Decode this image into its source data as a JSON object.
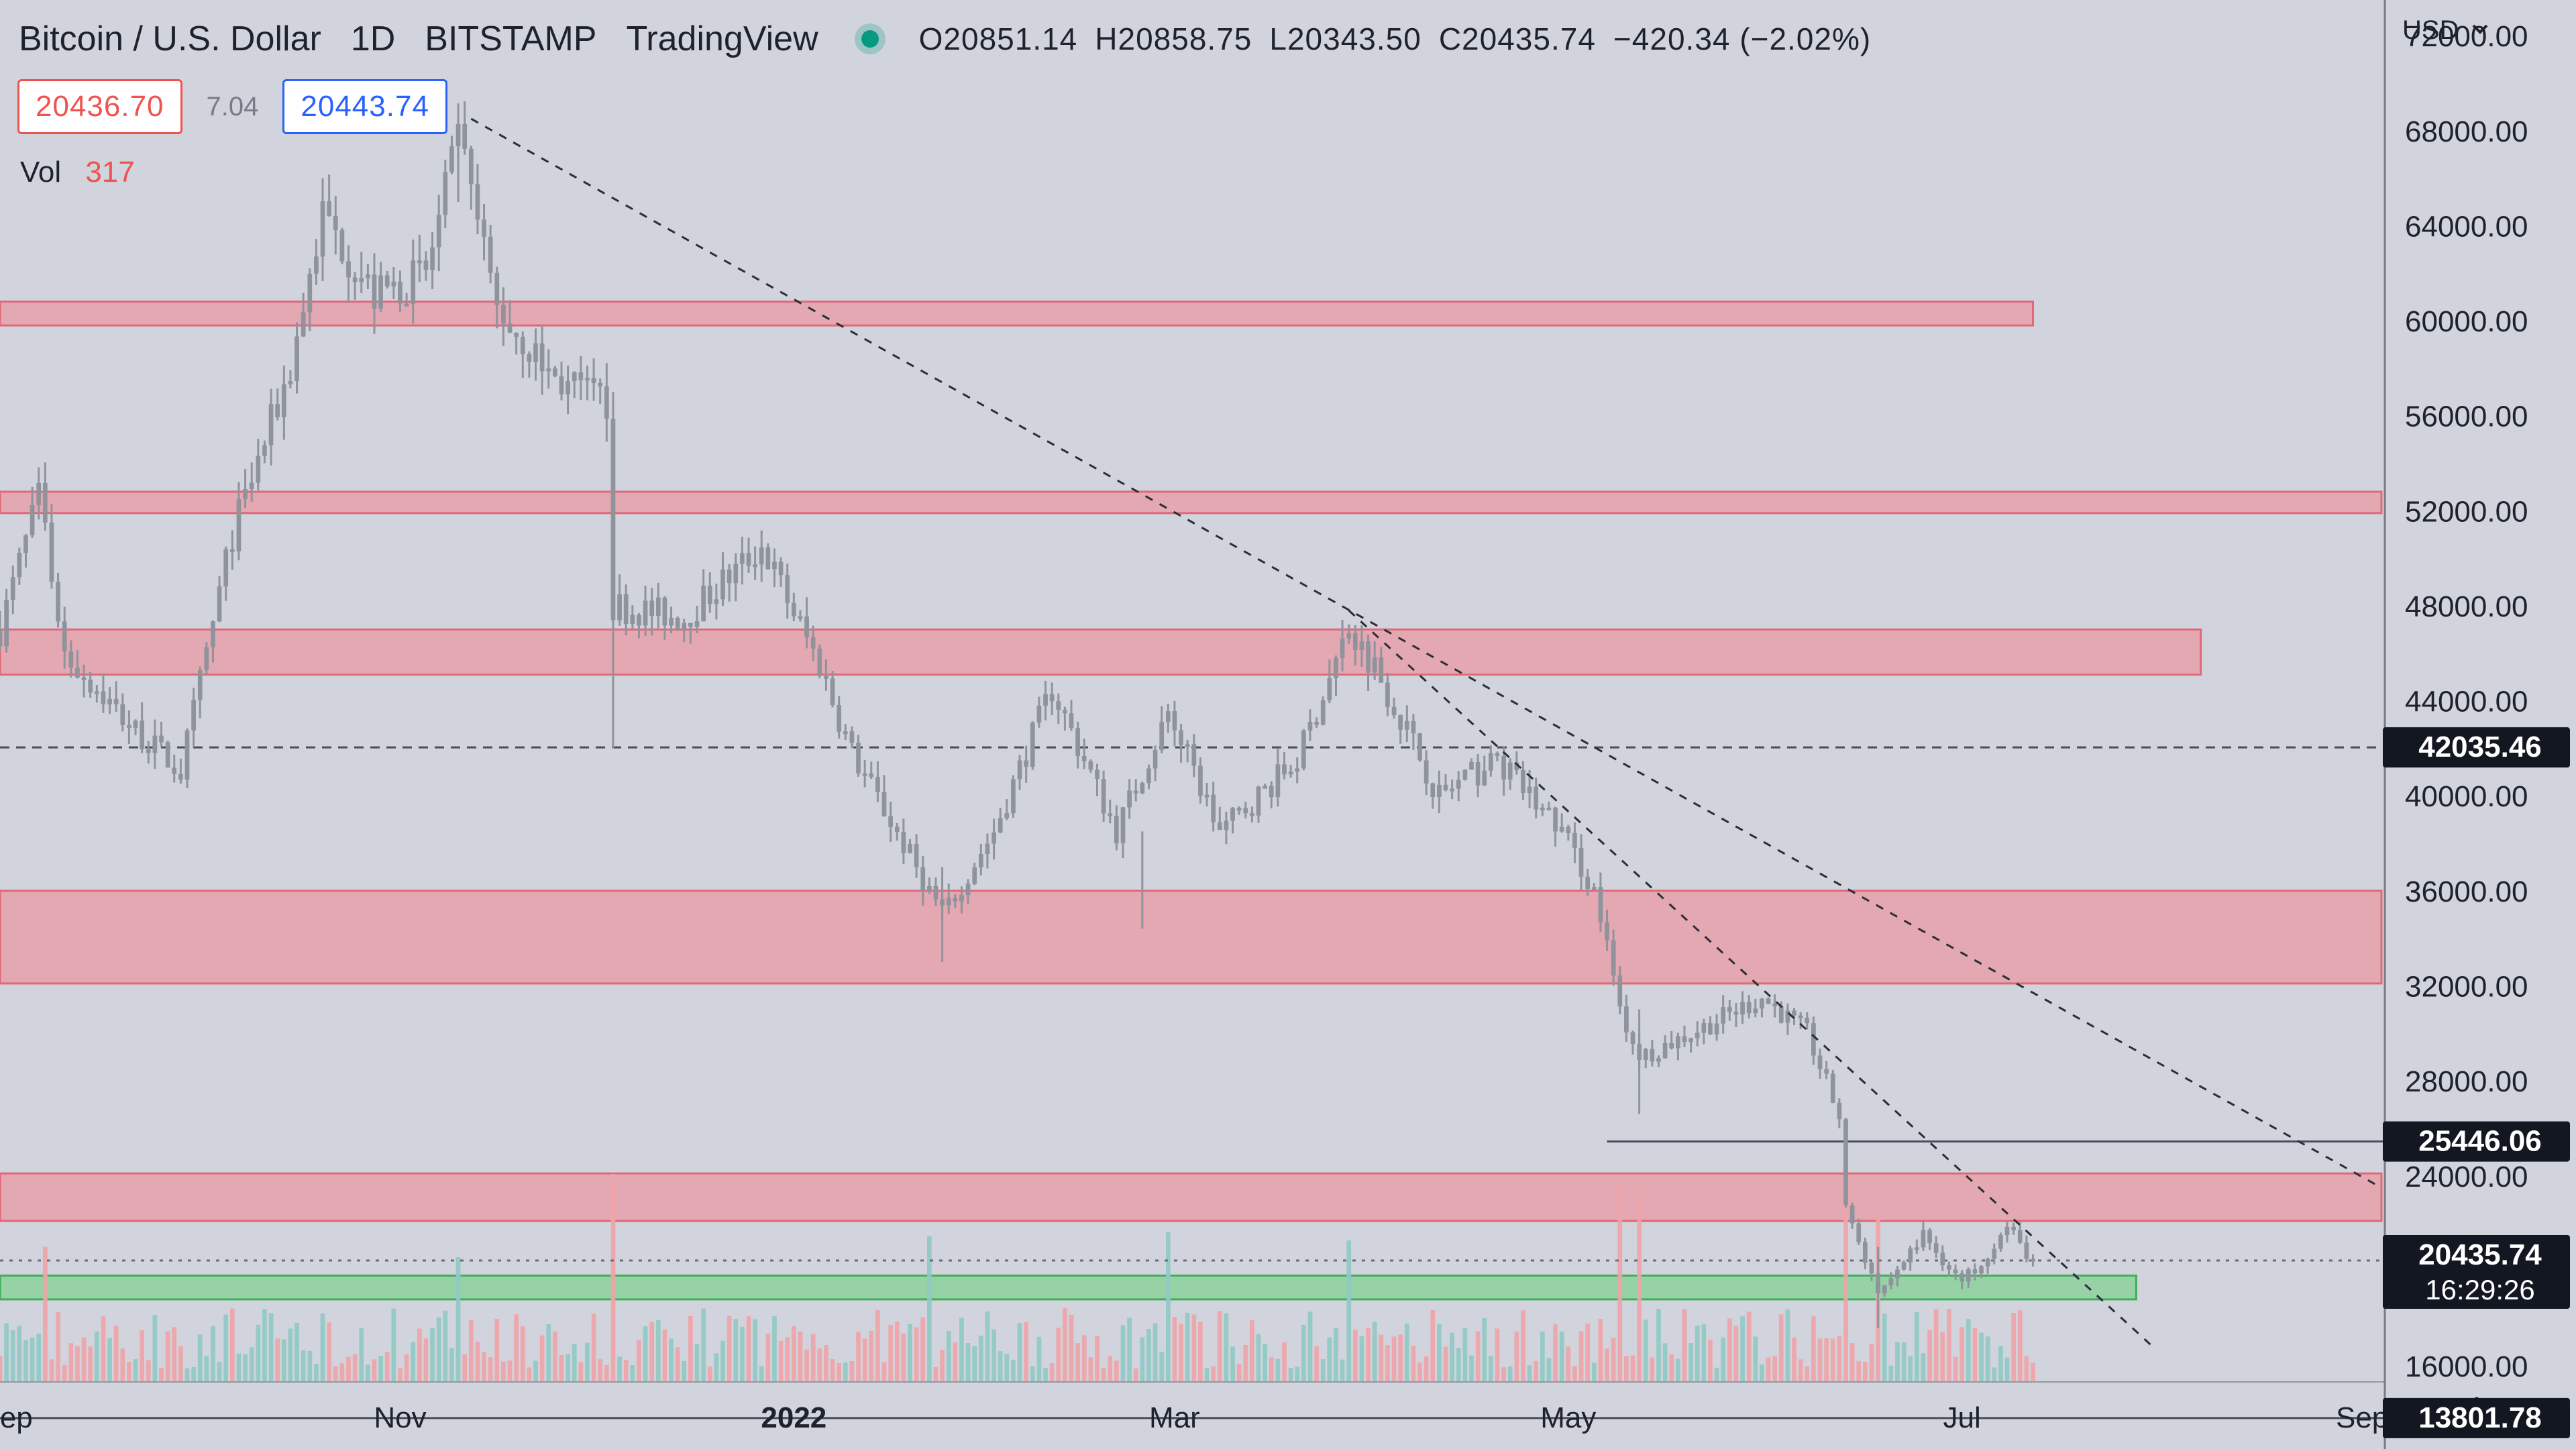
{
  "header": {
    "symbol": "Bitcoin / U.S. Dollar",
    "interval": "1D",
    "exchange": "BITSTAMP",
    "source": "TradingView",
    "open": "O20851.14",
    "high": "H20858.75",
    "low": "L20343.50",
    "close": "C20435.74",
    "change": "−420.34 (−2.02%)"
  },
  "trade": {
    "sell": "20436.70",
    "spread": "7.04",
    "buy": "20443.74"
  },
  "volume": {
    "label": "Vol",
    "value": "317"
  },
  "currency": {
    "label": "USD",
    "icon": "chevron-down-icon"
  },
  "settings_icon": "gear-icon",
  "colors": {
    "background": "#d1d4dc",
    "candle": "#8f939c",
    "zone_red": "#e8a0aa",
    "zone_red_edge": "#e06877",
    "zone_green": "#8fd19e",
    "zone_green_edge": "#3fae5a",
    "vol_up": "#8fc9c4",
    "vol_down": "#f0a3a8",
    "label_bg": "#131722"
  },
  "chart_data": {
    "type": "candlestick",
    "y_scale": "linear",
    "ylim": [
      12500,
      73500
    ],
    "x_range": [
      "2021-08-31",
      "2022-09-04"
    ],
    "x_ticks": [
      {
        "date": "2021-09-01",
        "label": "Sep"
      },
      {
        "date": "2021-11-01",
        "label": "Nov"
      },
      {
        "date": "2022-01-01",
        "label": "2022"
      },
      {
        "date": "2022-03-01",
        "label": "Mar"
      },
      {
        "date": "2022-05-01",
        "label": "May"
      },
      {
        "date": "2022-07-01",
        "label": "Jul"
      },
      {
        "date": "2022-09-01",
        "label": "Sep"
      }
    ],
    "y_ticks": [
      16000,
      20000,
      24000,
      28000,
      32000,
      36000,
      40000,
      44000,
      48000,
      52000,
      56000,
      60000,
      64000,
      68000,
      72000
    ],
    "price_path": [
      [
        "2021-08-31",
        47000
      ],
      [
        "2021-09-06",
        52500
      ],
      [
        "2021-09-10",
        46000
      ],
      [
        "2021-09-20",
        43000
      ],
      [
        "2021-09-28",
        41000
      ],
      [
        "2021-10-06",
        51000
      ],
      [
        "2021-10-15",
        58000
      ],
      [
        "2021-10-20",
        64500
      ],
      [
        "2021-10-28",
        61000
      ],
      [
        "2021-11-05",
        62000
      ],
      [
        "2021-11-10",
        67500
      ],
      [
        "2021-11-16",
        60500
      ],
      [
        "2021-11-25",
        57500
      ],
      [
        "2021-12-03",
        56500
      ],
      [
        "2021-12-04",
        48000
      ],
      [
        "2021-12-15",
        47500
      ],
      [
        "2021-12-27",
        50500
      ],
      [
        "2022-01-05",
        45500
      ],
      [
        "2022-01-10",
        41800
      ],
      [
        "2022-01-21",
        36500
      ],
      [
        "2022-01-24",
        35000
      ],
      [
        "2022-02-01",
        38500
      ],
      [
        "2022-02-10",
        44500
      ],
      [
        "2022-02-20",
        38500
      ],
      [
        "2022-02-28",
        43500
      ],
      [
        "2022-03-08",
        38500
      ],
      [
        "2022-03-20",
        41500
      ],
      [
        "2022-03-28",
        47000
      ],
      [
        "2022-04-01",
        45500
      ],
      [
        "2022-04-11",
        40000
      ],
      [
        "2022-04-20",
        41500
      ],
      [
        "2022-04-30",
        38500
      ],
      [
        "2022-05-05",
        36000
      ],
      [
        "2022-05-09",
        31000
      ],
      [
        "2022-05-12",
        29000
      ],
      [
        "2022-05-20",
        30000
      ],
      [
        "2022-05-31",
        31500
      ],
      [
        "2022-06-07",
        30000
      ],
      [
        "2022-06-12",
        26500
      ],
      [
        "2022-06-13",
        22500
      ],
      [
        "2022-06-18",
        19000
      ],
      [
        "2022-06-25",
        21500
      ],
      [
        "2022-07-01",
        19500
      ],
      [
        "2022-07-08",
        21800
      ],
      [
        "2022-07-12",
        20400
      ]
    ],
    "current_price": 20435.74,
    "price_labels": [
      {
        "price": 42035.46,
        "text": "42035.46"
      },
      {
        "price": 25446.06,
        "text": "25446.06"
      },
      {
        "price": 20435.74,
        "text": "20435.74",
        "countdown": "16:29:26"
      },
      {
        "price": 13801.78,
        "text": "13801.78"
      }
    ],
    "zones": [
      {
        "kind": "resistance",
        "from": 59800,
        "to": 60800,
        "start": "2021-08-31",
        "end": "2022-07-12"
      },
      {
        "kind": "resistance",
        "from": 51900,
        "to": 52800,
        "start": "2021-08-31",
        "end": "2022-09-04"
      },
      {
        "kind": "resistance",
        "from": 45100,
        "to": 47000,
        "start": "2021-08-31",
        "end": "2022-08-07"
      },
      {
        "kind": "resistance",
        "from": 32100,
        "to": 36000,
        "start": "2021-08-31",
        "end": "2022-09-04"
      },
      {
        "kind": "resistance",
        "from": 22100,
        "to": 24100,
        "start": "2021-08-31",
        "end": "2022-09-04"
      },
      {
        "kind": "support",
        "from": 18800,
        "to": 19800,
        "start": "2021-08-31",
        "end": "2022-07-28"
      }
    ],
    "trendlines": [
      {
        "from": [
          "2021-11-12",
          68500
        ],
        "to": [
          "2022-09-04",
          23500
        ],
        "style": "dashed"
      },
      {
        "from": [
          "2022-03-28",
          47800
        ],
        "to": [
          "2022-07-31",
          16700
        ],
        "style": "dashed"
      }
    ],
    "level_lines": [
      {
        "price": 42035.46,
        "style": "dashed"
      },
      {
        "price": 25446.06,
        "style": "solid",
        "start": "2022-05-07"
      },
      {
        "price": 20435.74,
        "style": "dotted"
      },
      {
        "price": 13801.78,
        "style": "solid"
      }
    ],
    "volume_spikes": [
      {
        "date": "2021-12-04",
        "height": 1.0
      },
      {
        "date": "2022-05-09",
        "height": 0.95
      },
      {
        "date": "2022-05-12",
        "height": 0.9
      },
      {
        "date": "2022-06-13",
        "height": 0.98
      },
      {
        "date": "2022-06-18",
        "height": 0.8
      },
      {
        "date": "2022-01-22",
        "height": 0.7
      },
      {
        "date": "2022-02-28",
        "height": 0.72
      },
      {
        "date": "2022-03-28",
        "height": 0.68
      },
      {
        "date": "2021-09-07",
        "height": 0.65
      },
      {
        "date": "2021-11-10",
        "height": 0.6
      }
    ]
  }
}
